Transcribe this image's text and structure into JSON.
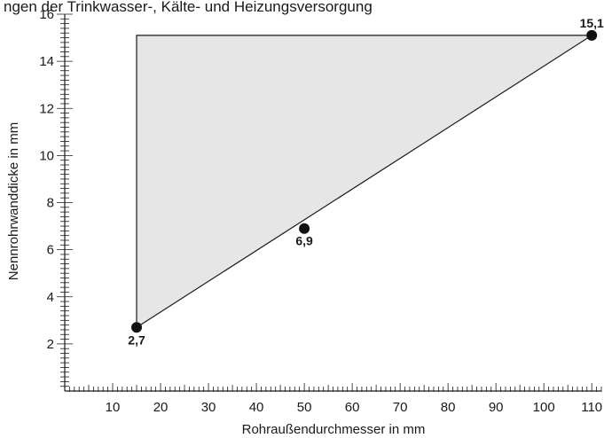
{
  "header": {
    "title_fragment": "ngen der Trinkwasser-, Kälte- und Heizungsversorgung"
  },
  "chart_data": {
    "type": "area",
    "title": "ngen der Trinkwasser-, Kälte- und Heizungsversorgung",
    "xlabel": "Rohraußendurchmesser in mm",
    "ylabel": "Nennrohrwanddicke in mm",
    "xlim": [
      0,
      112
    ],
    "ylim": [
      0,
      16
    ],
    "x_ticks": [
      10,
      20,
      30,
      40,
      50,
      60,
      70,
      80,
      90,
      100,
      110
    ],
    "y_ticks": [
      2,
      4,
      6,
      8,
      10,
      12,
      14,
      16
    ],
    "grid": false,
    "region": {
      "description_points": [
        {
          "x": 15,
          "y": 2.7
        },
        {
          "x": 110,
          "y": 15.1
        },
        {
          "x": 15,
          "y": 15.1
        }
      ],
      "fill": "#e6e6e6",
      "stroke": "#1a1a1a"
    },
    "points": [
      {
        "x": 15,
        "y": 2.7,
        "label": "2,7"
      },
      {
        "x": 50,
        "y": 6.9,
        "label": "6,9"
      },
      {
        "x": 110,
        "y": 15.1,
        "label": "15,1"
      }
    ]
  }
}
